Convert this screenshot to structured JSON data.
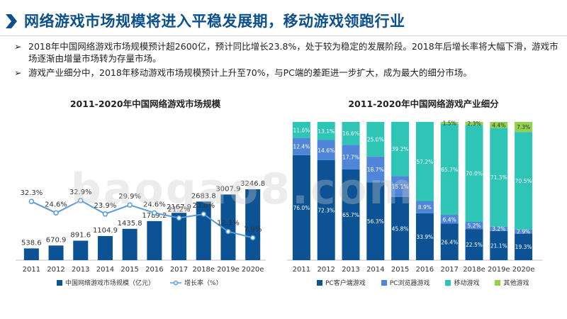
{
  "header": {
    "title": "网络游戏市场规模将进入平稳发展期，移动游戏领跑行业"
  },
  "bullets": [
    {
      "marker": "➢",
      "text": "2018年中国网络游戏市场规模预计超2600亿，预计同比增长23.8%，处于较为稳定的发展阶段。2018年后增长率将大幅下滑，游戏市场逐渐由增量市场转为存量市场。"
    },
    {
      "marker": "➢",
      "text": "游戏产业细分中，2018年移动游戏市场规模预计上升至70%，与PC端的差距进一步扩大，成为最大的细分市场。"
    }
  ],
  "watermark": "baogao8.com",
  "colors": {
    "title": "#0b4f8c",
    "bar_dark": "#0b5394",
    "line_blue": "#5b9bd5",
    "pc_client": "#0b5394",
    "pc_browser": "#4f86d9",
    "mobile": "#2ec4b6",
    "other": "#92d050"
  },
  "chart_data": [
    {
      "type": "bar",
      "title": "2011-2020年中国网络游戏市场规模",
      "categories": [
        "2011",
        "2012",
        "2013",
        "2014",
        "2015",
        "2016",
        "2017",
        "2018e",
        "2019e",
        "2020e"
      ],
      "series": [
        {
          "name": "中国网络游戏市场规模（亿元）",
          "type": "bar",
          "values": [
            538.6,
            670.9,
            891.6,
            1104.9,
            1435.8,
            1789.2,
            2167.9,
            2683.8,
            3007.9,
            3246.8
          ]
        },
        {
          "name": "增长率（%）",
          "type": "line",
          "values": [
            32.3,
            24.6,
            32.9,
            23.9,
            29.9,
            24.6,
            21.2,
            23.8,
            12.1,
            7.9
          ],
          "labels": [
            "32.3%",
            "24.6%",
            "32.9%",
            "23.9%",
            "29.9%",
            "24.6%",
            "21.2%",
            "23.8%",
            "12.1%",
            "7.9%"
          ]
        }
      ],
      "bar_labels": [
        "538.6",
        "670.9",
        "891.6",
        "1104.9",
        "1435.8",
        "1789.2",
        "2167.9",
        "2683.8",
        "3007.9",
        "3246.8"
      ],
      "legend": [
        "中国网络游戏市场规模（亿元）",
        "增长率（%）"
      ],
      "legend_position": "bottom"
    },
    {
      "type": "bar",
      "stacked": true,
      "title": "2011-2020年中国网络游戏产业细分",
      "categories": [
        "2011",
        "2012",
        "2013",
        "2014",
        "2015",
        "2016",
        "2017",
        "2018e",
        "2019e",
        "2020e"
      ],
      "series": [
        {
          "name": "PC客户端游戏",
          "values": [
            76.0,
            72.3,
            65.7,
            56.3,
            45.8,
            33.9,
            26.4,
            22.5,
            21.1,
            19.3
          ],
          "labels": [
            "76.0%",
            "72.3%",
            "65.7%",
            "56.3%",
            "45.8%",
            "33.9%",
            "26.4%",
            "22.5%",
            "21.1%",
            "19.3%"
          ]
        },
        {
          "name": "PC浏览器游戏",
          "values": [
            12.4,
            14.6,
            17.7,
            18.7,
            15.1,
            8.9,
            6.4,
            5.2,
            3.2,
            2.9
          ],
          "labels": [
            "12.4%",
            "14.6%",
            "17.7%",
            "18.7%",
            "15.1%",
            "8.9%",
            "6.4%",
            "5.2%",
            "3.2%",
            "2.9%"
          ]
        },
        {
          "name": "移动游戏",
          "values": [
            11.6,
            13.1,
            16.6,
            25.0,
            39.2,
            57.2,
            65.7,
            70.0,
            71.3,
            70.5
          ],
          "labels": [
            "11.6%",
            "13.1%",
            "16.6%",
            "25.0%",
            "39.2%",
            "57.2%",
            "65.7%",
            "70.0%",
            "71.3%",
            "70.5%"
          ]
        },
        {
          "name": "其他游戏",
          "values": [
            0,
            0,
            0,
            0,
            0,
            0,
            1.5,
            2.3,
            4.4,
            7.3
          ],
          "labels": [
            "",
            "",
            "",
            "",
            "",
            "",
            "1.5%",
            "2.3%",
            "4.4%",
            "7.3%"
          ]
        }
      ],
      "ylim": [
        0,
        100
      ],
      "legend": [
        "PC客户端游戏",
        "PC浏览器游戏",
        "移动游戏",
        "其他游戏"
      ],
      "legend_position": "bottom"
    }
  ]
}
